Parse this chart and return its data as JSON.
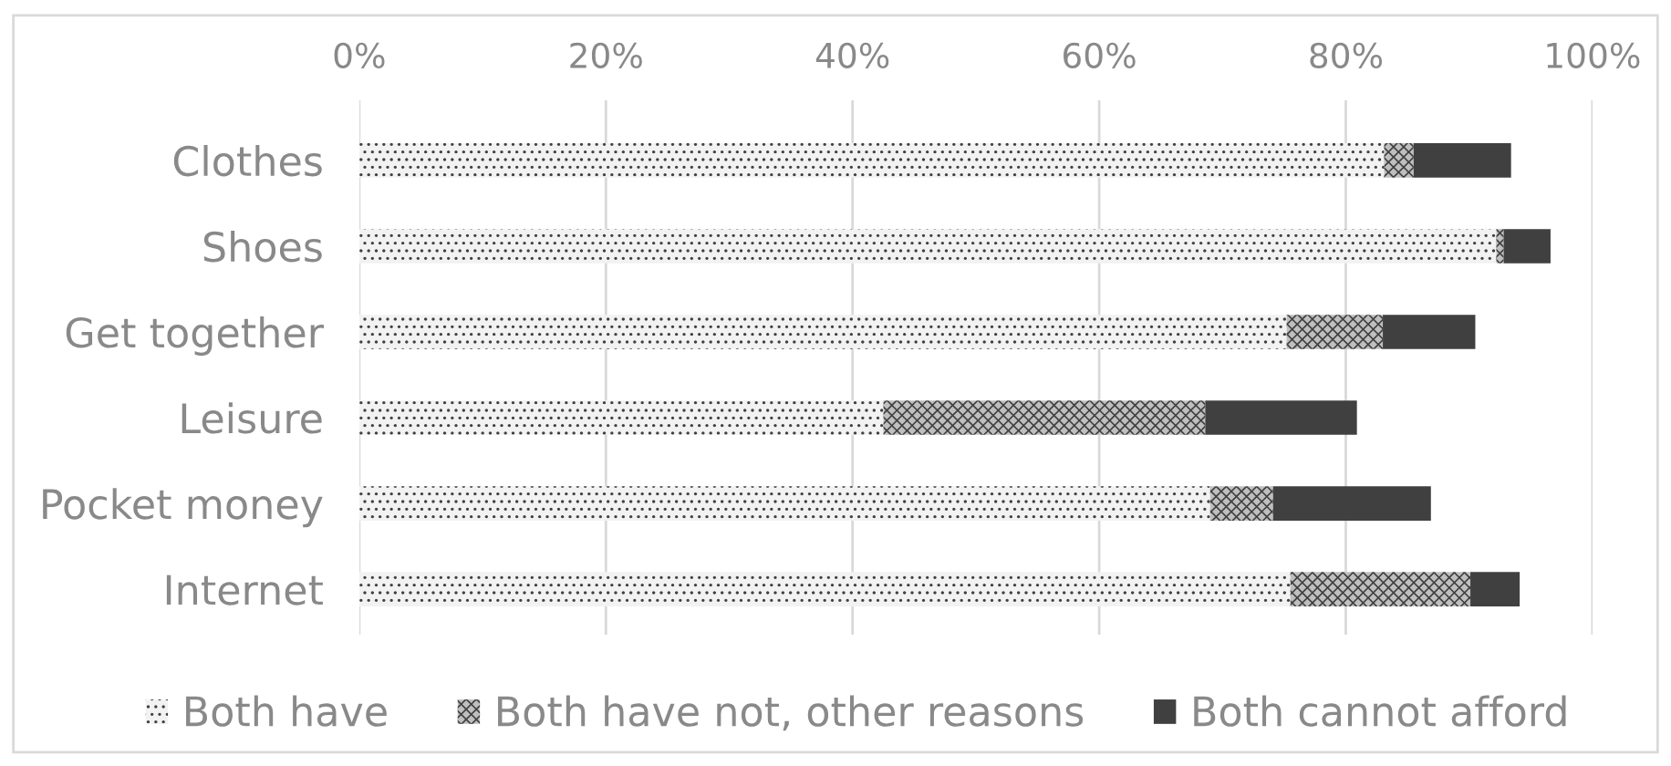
{
  "chart_data": {
    "type": "bar",
    "orientation": "horizontal",
    "stacked": true,
    "categories": [
      "Clothes",
      "Shoes",
      "Get together",
      "Leisure",
      "Pocket money",
      "Internet"
    ],
    "series": [
      {
        "name": "Both have",
        "color": "#f2f2f2",
        "values": [
          83.1,
          92.2,
          75.2,
          42.5,
          69.0,
          75.5
        ]
      },
      {
        "name": "Both have not, other reasons",
        "color": "#bfbfbf",
        "values": [
          2.4,
          0.6,
          7.8,
          26.1,
          5.1,
          14.6
        ]
      },
      {
        "name": "Both cannot afford",
        "color": "#404040",
        "values": [
          7.9,
          3.8,
          7.5,
          12.3,
          12.8,
          4.0
        ]
      }
    ],
    "xlim": [
      0,
      100
    ],
    "xticks": [
      {
        "value": 0,
        "label": "0%"
      },
      {
        "value": 20,
        "label": "20%"
      },
      {
        "value": 40,
        "label": "40%"
      },
      {
        "value": 60,
        "label": "60%"
      },
      {
        "value": 80,
        "label": "80%"
      },
      {
        "value": 100,
        "label": "100%"
      }
    ],
    "grid": "x",
    "legend": "bottom"
  }
}
